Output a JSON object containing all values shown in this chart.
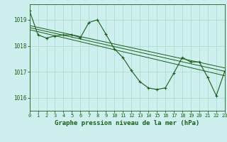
{
  "background_color": "#cdf0ee",
  "grid_color": "#a8d8cc",
  "line_color": "#1a5c1a",
  "title": "Graphe pression niveau de la mer (hPa)",
  "title_fontsize": 6.5,
  "xlim": [
    0,
    23
  ],
  "ylim": [
    1015.5,
    1019.6
  ],
  "yticks": [
    1016,
    1017,
    1018,
    1019
  ],
  "xticks": [
    0,
    1,
    2,
    3,
    4,
    5,
    6,
    7,
    8,
    9,
    10,
    11,
    12,
    13,
    14,
    15,
    16,
    17,
    18,
    19,
    20,
    21,
    22,
    23
  ],
  "line1_x": [
    0,
    1,
    2,
    3,
    4,
    5,
    6,
    7,
    8,
    9,
    10,
    11,
    12,
    13,
    14,
    15,
    16,
    17,
    18,
    19,
    20,
    21,
    22,
    23
  ],
  "line1_y": [
    1019.35,
    1018.42,
    1018.3,
    1018.38,
    1018.42,
    1018.42,
    1018.32,
    1018.9,
    1019.0,
    1018.45,
    1017.88,
    1017.55,
    1017.05,
    1016.62,
    1016.38,
    1016.32,
    1016.38,
    1016.95,
    1017.55,
    1017.38,
    1017.38,
    1016.78,
    1016.08,
    1017.02
  ],
  "line2_x": [
    0,
    23
  ],
  "line2_y": [
    1018.7,
    1017.02
  ],
  "line3_x": [
    0,
    23
  ],
  "line3_y": [
    1018.62,
    1016.85
  ],
  "line4_x": [
    0,
    23
  ],
  "line4_y": [
    1018.78,
    1017.15
  ]
}
